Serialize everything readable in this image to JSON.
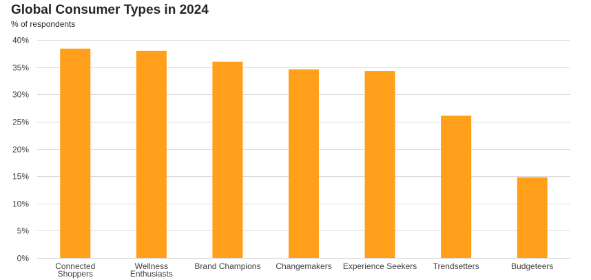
{
  "chart_data": {
    "type": "bar",
    "title": "Global Consumer Types in 2024",
    "subtitle": "% of respondents",
    "categories": [
      [
        "Connected",
        "Shoppers"
      ],
      [
        "Wellness",
        "Enthusiasts"
      ],
      [
        "Brand Champions"
      ],
      [
        "Changemakers"
      ],
      [
        "Experience Seekers"
      ],
      [
        "Trendsetters"
      ],
      [
        "Budgeteers"
      ]
    ],
    "values": [
      38.4,
      38.0,
      36.0,
      34.6,
      34.3,
      26.1,
      14.8
    ],
    "ylim": [
      0,
      40
    ],
    "yticks": [
      0,
      5,
      10,
      15,
      20,
      25,
      30,
      35,
      40
    ],
    "ytick_suffix": "%",
    "bar_color": "#FF9F1A",
    "grid": true
  }
}
